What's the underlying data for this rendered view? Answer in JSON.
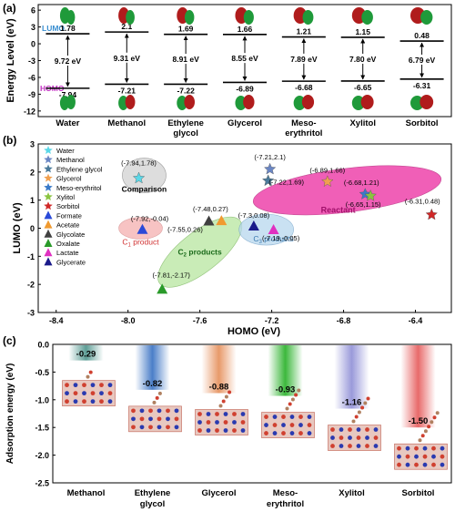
{
  "panel_labels": [
    "(a)",
    "(b)",
    "(c)"
  ],
  "colors": {
    "lumo_label": "#3a8fd1",
    "homo_label": "#c030c0",
    "orbital_red": "#b01c1c",
    "orbital_green": "#1f9a3a",
    "reactant_fill": "#ec2aa0",
    "c1_fill": "#f5b0b0",
    "c2_fill": "#b8e6a0",
    "c3_fill": "#b8d8ee",
    "comparison_fill": "#d8d8d8"
  },
  "chart_data": [
    {
      "type": "bar",
      "panel": "(a)",
      "ylabel": "Energy Level (eV)",
      "ylim": [
        -13,
        7
      ],
      "yticks": [
        6,
        3,
        0,
        -3,
        -6,
        -9,
        -12
      ],
      "lumo_label": "LUMO",
      "homo_label": "HOMO",
      "categories": [
        "Water",
        "Methanol",
        "Ethylene glycol",
        "Glycerol",
        "Meso-erythritol",
        "Xylitol",
        "Sorbitol"
      ],
      "category_lines": [
        [
          "Water"
        ],
        [
          "Methanol"
        ],
        [
          "Ethylene",
          "glycol"
        ],
        [
          "Glycerol"
        ],
        [
          "Meso-",
          "erythritol"
        ],
        [
          "Xylitol"
        ],
        [
          "Sorbitol"
        ]
      ],
      "series": [
        {
          "name": "LUMO",
          "values": [
            1.78,
            2.1,
            1.69,
            1.66,
            1.21,
            1.15,
            0.48
          ],
          "labels": [
            "1.78",
            "2.1",
            "1.69",
            "1.66",
            "1.21",
            "1.15",
            "0.48"
          ]
        },
        {
          "name": "HOMO",
          "values": [
            -7.94,
            -7.21,
            -7.22,
            -6.89,
            -6.68,
            -6.65,
            -6.31
          ],
          "labels": [
            "-7.94",
            "-7.21",
            "-7.22",
            "-6.89",
            "-6.68",
            "-6.65",
            "-6.31"
          ]
        }
      ],
      "gaps": [
        "9.72 eV",
        "9.31 eV",
        "8.91 eV",
        "8.55 eV",
        "7.89 eV",
        "7.80 eV",
        "6.79 eV"
      ]
    },
    {
      "type": "scatter",
      "panel": "(b)",
      "xlabel": "HOMO (eV)",
      "ylabel": "LUMO (eV)",
      "xlim": [
        -8.5,
        -6.2
      ],
      "ylim": [
        -3,
        3
      ],
      "xticks": [
        -8.4,
        -8.0,
        -7.6,
        -7.2,
        -6.8,
        -6.4
      ],
      "yticks": [
        -3,
        -2,
        -1,
        0,
        1,
        2,
        3
      ],
      "series": [
        {
          "name": "Water",
          "marker": "star",
          "color": "#5ad8e8",
          "points": [
            {
              "x": -7.94,
              "y": 1.78,
              "label": "(-7.94,1.78)"
            }
          ]
        },
        {
          "name": "Methanol",
          "marker": "star",
          "color": "#6a86c4",
          "points": [
            {
              "x": -7.21,
              "y": 2.1,
              "label": "(-7.21,2.1)"
            }
          ]
        },
        {
          "name": "Ethylene glycol",
          "marker": "star",
          "color": "#4a7a9a",
          "points": [
            {
              "x": -7.22,
              "y": 1.69,
              "label": "(-7.22,1.69)"
            }
          ]
        },
        {
          "name": "Glycerol",
          "marker": "star",
          "color": "#f0a050",
          "points": [
            {
              "x": -6.89,
              "y": 1.66,
              "label": "(-6.89,1.66)"
            }
          ]
        },
        {
          "name": "Meso-erythritol",
          "marker": "star",
          "color": "#3a7ac8",
          "points": [
            {
              "x": -6.68,
              "y": 1.21,
              "label": "(-6.68,1.21)"
            }
          ]
        },
        {
          "name": "Xylitol",
          "marker": "star",
          "color": "#8ac440",
          "points": [
            {
              "x": -6.65,
              "y": 1.15,
              "label": "(-6.65,1.15)"
            }
          ]
        },
        {
          "name": "Sorbitol",
          "marker": "star",
          "color": "#d02828",
          "points": [
            {
              "x": -6.31,
              "y": 0.48,
              "label": "(-6.31,0.48)"
            }
          ]
        },
        {
          "name": "Formate",
          "marker": "triangle",
          "color": "#2a4ad8",
          "points": [
            {
              "x": -7.92,
              "y": -0.04,
              "label": "(-7.92,-0.04)"
            }
          ]
        },
        {
          "name": "Acetate",
          "marker": "triangle",
          "color": "#f09a30",
          "points": [
            {
              "x": -7.48,
              "y": 0.27,
              "label": "(-7.48,0.27)"
            }
          ]
        },
        {
          "name": "Glycolate",
          "marker": "triangle",
          "color": "#404040",
          "points": [
            {
              "x": -7.55,
              "y": 0.26,
              "label": "(-7.55,0.26)"
            }
          ]
        },
        {
          "name": "Oxalate",
          "marker": "triangle",
          "color": "#2a9a2a",
          "points": [
            {
              "x": -7.81,
              "y": -2.17,
              "label": "(-7.81,-2.17)"
            }
          ]
        },
        {
          "name": "Lactate",
          "marker": "triangle",
          "color": "#e030c0",
          "points": [
            {
              "x": -7.19,
              "y": -0.05,
              "label": "(-7.19,-0.05)"
            }
          ]
        },
        {
          "name": "Glycerate",
          "marker": "triangle",
          "color": "#1a1a8a",
          "points": [
            {
              "x": -7.3,
              "y": 0.08,
              "label": "(-7.3,0.08)"
            }
          ]
        }
      ],
      "annotations": [
        "Comparison",
        "C1 product",
        "C2 products",
        "C3 products",
        "Reactant"
      ]
    },
    {
      "type": "bar",
      "panel": "(c)",
      "ylabel": "Adsorption energy (eV)",
      "ylim": [
        -2.5,
        0
      ],
      "yticks": [
        0.0,
        -0.5,
        -1.0,
        -1.5,
        -2.0,
        -2.5
      ],
      "ytick_labels": [
        "0.0",
        "-0.5",
        "-1.0",
        "-1.5",
        "-2.0",
        "-2.5"
      ],
      "categories": [
        "Methanol",
        "Ethylene glycol",
        "Glycerol",
        "Meso-erythritol",
        "Xylitol",
        "Sorbitol"
      ],
      "category_lines": [
        [
          "Methanol"
        ],
        [
          "Ethylene",
          "glycol"
        ],
        [
          "Glycerol"
        ],
        [
          "Meso-",
          "erythritol"
        ],
        [
          "Xylitol"
        ],
        [
          "Sorbitol"
        ]
      ],
      "values": [
        -0.29,
        -0.82,
        -0.88,
        -0.93,
        -1.16,
        -1.5
      ],
      "value_labels": [
        "-0.29",
        "-0.82",
        "-0.88",
        "-0.93",
        "-1.16",
        "-1.50"
      ],
      "bar_colors": [
        "#5e9e96",
        "#4a7ec8",
        "#e89a6a",
        "#3cb83c",
        "#9a9ada",
        "#e86a6a"
      ]
    }
  ]
}
